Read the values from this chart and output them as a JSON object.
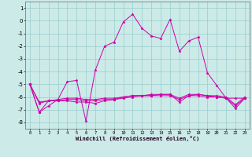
{
  "xlabel": "Windchill (Refroidissement éolien,°C)",
  "background_color": "#cceae8",
  "grid_color": "#99cccc",
  "line_color": "#cc00aa",
  "x_data": [
    0,
    1,
    2,
    3,
    4,
    5,
    6,
    7,
    8,
    9,
    10,
    11,
    12,
    13,
    14,
    15,
    16,
    17,
    18,
    19,
    20,
    21,
    22,
    23
  ],
  "series1": [
    -5.0,
    -7.2,
    -6.7,
    -6.2,
    -4.8,
    -4.7,
    -7.9,
    -3.9,
    -2.0,
    -1.7,
    -0.1,
    0.5,
    -0.6,
    -1.2,
    -1.4,
    0.1,
    -2.4,
    -1.6,
    -1.3,
    -4.1,
    -5.1,
    -6.1,
    -6.1,
    -6.1
  ],
  "series2": [
    -5.0,
    -7.2,
    -6.3,
    -6.3,
    -6.3,
    -6.4,
    -6.4,
    -6.5,
    -6.3,
    -6.2,
    -6.0,
    -5.9,
    -5.9,
    -5.9,
    -5.8,
    -5.8,
    -6.4,
    -5.9,
    -5.9,
    -6.0,
    -6.0,
    -6.1,
    -6.9,
    -6.1
  ],
  "series3": [
    -5.0,
    -6.5,
    -6.3,
    -6.3,
    -6.2,
    -6.2,
    -6.3,
    -6.3,
    -6.2,
    -6.2,
    -6.1,
    -6.0,
    -5.9,
    -5.9,
    -5.9,
    -5.9,
    -6.2,
    -5.9,
    -5.8,
    -5.9,
    -6.0,
    -6.1,
    -6.7,
    -6.1
  ],
  "series4": [
    -5.0,
    -6.4,
    -6.3,
    -6.2,
    -6.1,
    -6.1,
    -6.2,
    -6.2,
    -6.1,
    -6.1,
    -6.0,
    -5.9,
    -5.9,
    -5.8,
    -5.8,
    -5.8,
    -6.1,
    -5.8,
    -5.8,
    -5.9,
    -5.9,
    -6.0,
    -6.6,
    -6.0
  ],
  "xlim": [
    -0.5,
    23.5
  ],
  "ylim": [
    -8.5,
    1.5
  ],
  "yticks": [
    1,
    0,
    -1,
    -2,
    -3,
    -4,
    -5,
    -6,
    -7,
    -8
  ],
  "xticks": [
    0,
    1,
    2,
    3,
    4,
    5,
    6,
    7,
    8,
    9,
    10,
    11,
    12,
    13,
    14,
    15,
    16,
    17,
    18,
    19,
    20,
    21,
    22,
    23
  ]
}
